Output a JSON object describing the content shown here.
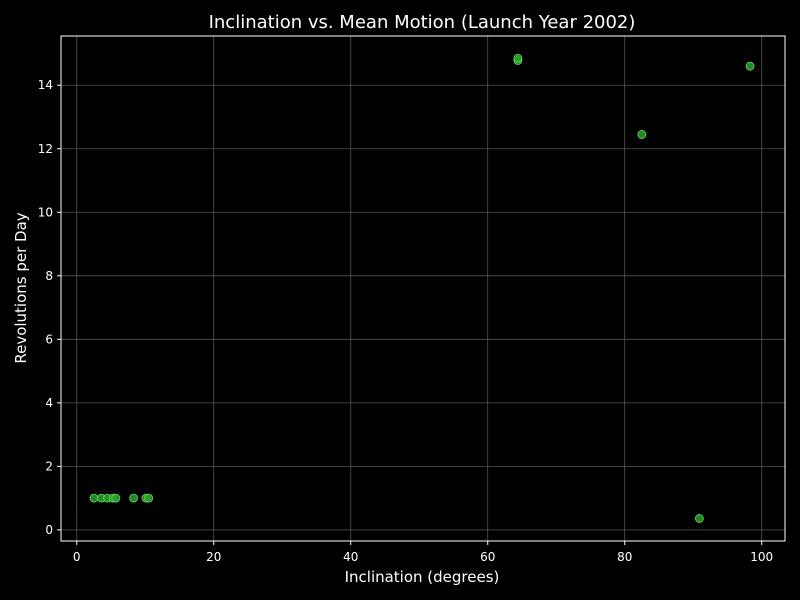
{
  "chart_data": {
    "type": "scatter",
    "title": "Inclination vs. Mean Motion (Launch Year 2002)",
    "xlabel": "Inclination (degrees)",
    "ylabel": "Revolutions per Day",
    "xlim": [
      -2.3,
      103.4
    ],
    "ylim": [
      -0.35,
      15.55
    ],
    "xticks": [
      0,
      20,
      40,
      60,
      80,
      100
    ],
    "yticks": [
      0,
      2,
      4,
      6,
      8,
      10,
      12,
      14
    ],
    "grid": true,
    "legend": "none",
    "colors": {
      "background": "#000000",
      "marker_fill": "#2e9e2e",
      "marker_edge": "#5fdc5f",
      "grid": "#555555",
      "axes": "#ffffff",
      "text": "#ffffff"
    },
    "points": [
      {
        "x": 2.5,
        "y": 1.0
      },
      {
        "x": 3.6,
        "y": 1.0
      },
      {
        "x": 4.5,
        "y": 1.0
      },
      {
        "x": 5.3,
        "y": 1.0
      },
      {
        "x": 5.7,
        "y": 1.0
      },
      {
        "x": 8.3,
        "y": 1.0
      },
      {
        "x": 10.1,
        "y": 1.0
      },
      {
        "x": 10.5,
        "y": 1.0
      },
      {
        "x": 64.4,
        "y": 14.78
      },
      {
        "x": 64.4,
        "y": 14.85
      },
      {
        "x": 82.5,
        "y": 12.45
      },
      {
        "x": 90.9,
        "y": 0.36
      },
      {
        "x": 98.3,
        "y": 14.6
      }
    ]
  }
}
